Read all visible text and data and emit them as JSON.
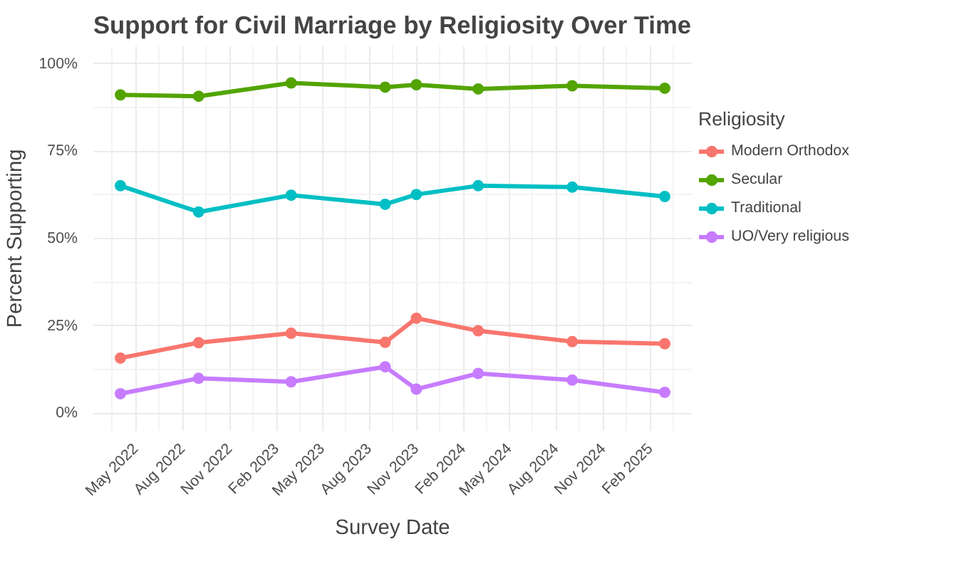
{
  "chart_data": {
    "type": "line",
    "title": "Support for Civil Marriage by Religiosity Over Time",
    "xlabel": "Survey Date",
    "ylabel": "Percent Supporting",
    "legend_title": "Religiosity",
    "x": [
      "2022-04-01",
      "2022-09-01",
      "2023-03-01",
      "2023-09-01",
      "2023-11-01",
      "2024-03-01",
      "2024-09-01",
      "2025-03-01"
    ],
    "series": [
      {
        "name": "Modern Orthodox",
        "color": "#f8766d",
        "values": [
          15.8,
          20.2,
          22.9,
          20.3,
          27.2,
          23.6,
          20.5,
          19.9
        ]
      },
      {
        "name": "Secular",
        "color": "#53a400",
        "values": [
          91.1,
          90.7,
          94.5,
          93.3,
          94.0,
          92.8,
          93.7,
          93.0
        ]
      },
      {
        "name": "Traditional",
        "color": "#00bfc4",
        "values": [
          65.1,
          57.6,
          62.4,
          59.8,
          62.6,
          65.1,
          64.7,
          62.0
        ]
      },
      {
        "name": "UO/Very religious",
        "color": "#c77cff",
        "values": [
          5.6,
          10.0,
          9.0,
          13.3,
          6.9,
          11.4,
          9.5,
          6.0
        ]
      }
    ],
    "xlim": [
      "2022-02-07",
      "2025-04-23"
    ],
    "xticks": [
      {
        "value": "2022-05-01",
        "label": "May 2022"
      },
      {
        "value": "2022-08-01",
        "label": "Aug 2022"
      },
      {
        "value": "2022-11-01",
        "label": "Nov 2022"
      },
      {
        "value": "2023-02-01",
        "label": "Feb 2023"
      },
      {
        "value": "2023-05-01",
        "label": "May 2023"
      },
      {
        "value": "2023-08-01",
        "label": "Aug 2023"
      },
      {
        "value": "2023-11-01",
        "label": "Nov 2023"
      },
      {
        "value": "2024-02-01",
        "label": "Feb 2024"
      },
      {
        "value": "2024-05-01",
        "label": "May 2024"
      },
      {
        "value": "2024-08-01",
        "label": "Aug 2024"
      },
      {
        "value": "2024-11-01",
        "label": "Nov 2024"
      },
      {
        "value": "2025-02-01",
        "label": "Feb 2025"
      }
    ],
    "ylim": [
      -5,
      105
    ],
    "yticks": [
      {
        "value": 0,
        "label": "0%"
      },
      {
        "value": 25,
        "label": "25%"
      },
      {
        "value": 50,
        "label": "50%"
      },
      {
        "value": 75,
        "label": "75%"
      },
      {
        "value": 100,
        "label": "100%"
      }
    ],
    "grid": true,
    "legend": "right",
    "marker": "circle",
    "line_style": "solid"
  }
}
